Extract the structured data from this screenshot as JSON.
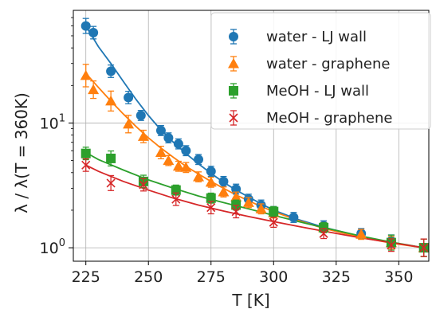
{
  "chart_data": {
    "type": "scatter",
    "title": "",
    "xlabel": "T [K]",
    "ylabel": "λ / λ(T = 360K)",
    "xlim": [
      220,
      362
    ],
    "ylim": [
      0.78,
      80
    ],
    "yscale": "log",
    "grid": true,
    "legend_position": "top-right",
    "x_ticks": [
      {
        "value": 225,
        "label": "225"
      },
      {
        "value": 250,
        "label": "250"
      },
      {
        "value": 275,
        "label": "275"
      },
      {
        "value": 300,
        "label": "300"
      },
      {
        "value": 325,
        "label": "325"
      },
      {
        "value": 350,
        "label": "350"
      }
    ],
    "y_ticks": [
      {
        "value": 1,
        "base": "10",
        "exp": "0"
      },
      {
        "value": 10,
        "base": "10",
        "exp": "1"
      }
    ],
    "series": [
      {
        "name": "water - LJ wall",
        "color": "#1f77b4",
        "marker": "circle",
        "x": [
          225,
          228,
          235,
          242,
          247,
          255,
          258,
          262,
          265,
          270,
          275,
          280,
          285,
          290,
          295,
          300,
          308,
          320,
          335,
          347,
          360
        ],
        "y": [
          60,
          53,
          26,
          16,
          11.5,
          8.7,
          7.6,
          6.8,
          6.0,
          5.1,
          4.1,
          3.4,
          2.95,
          2.45,
          2.2,
          1.95,
          1.75,
          1.5,
          1.3,
          1.13,
          1.0
        ],
        "err": [
          0.06,
          0.05,
          0.05,
          0.05,
          0.04,
          0.04,
          0.04,
          0.04,
          0.04,
          0.04,
          0.04,
          0.04,
          0.04,
          0.04,
          0.04,
          0.04,
          0.04,
          0.04,
          0.04,
          0.05,
          0.07
        ],
        "fit_x": [
          225,
          230,
          235,
          240,
          245,
          250,
          255,
          260,
          265,
          270,
          275,
          280,
          285,
          290,
          295,
          300,
          310,
          320,
          335,
          347,
          360
        ],
        "fit_y": [
          60,
          41,
          30,
          21.5,
          15.5,
          11.5,
          8.8,
          7.0,
          5.7,
          4.7,
          3.95,
          3.35,
          2.9,
          2.55,
          2.25,
          2.0,
          1.68,
          1.46,
          1.23,
          1.1,
          1.0
        ]
      },
      {
        "name": "water - graphene",
        "color": "#ff7f0e",
        "marker": "triangle",
        "x": [
          225,
          228,
          235,
          242,
          248,
          255,
          258,
          262,
          265,
          270,
          275,
          280,
          285,
          290,
          295,
          300,
          320,
          335,
          347,
          360
        ],
        "y": [
          24,
          18.5,
          15,
          9.8,
          7.8,
          5.8,
          5.0,
          4.5,
          4.4,
          3.7,
          3.35,
          2.8,
          2.55,
          2.3,
          2.05,
          1.9,
          1.45,
          1.28,
          1.1,
          1.0
        ],
        "err": [
          0.09,
          0.07,
          0.08,
          0.07,
          0.05,
          0.05,
          0.04,
          0.04,
          0.04,
          0.04,
          0.04,
          0.04,
          0.04,
          0.04,
          0.04,
          0.04,
          0.04,
          0.04,
          0.05,
          0.07
        ],
        "fit_x": [
          225,
          230,
          235,
          240,
          245,
          250,
          255,
          260,
          265,
          270,
          275,
          280,
          285,
          290,
          295,
          300,
          310,
          320,
          335,
          347,
          360
        ],
        "fit_y": [
          25,
          19.3,
          15,
          11.8,
          9.4,
          7.6,
          6.3,
          5.3,
          4.5,
          3.9,
          3.4,
          3.0,
          2.65,
          2.38,
          2.14,
          1.95,
          1.65,
          1.43,
          1.21,
          1.09,
          1.0
        ]
      },
      {
        "name": "MeOH - LJ wall",
        "color": "#2ca02c",
        "marker": "square",
        "x": [
          225,
          235,
          248,
          261,
          275,
          285,
          300,
          320,
          347,
          360
        ],
        "y": [
          5.7,
          5.2,
          3.4,
          2.9,
          2.5,
          2.2,
          1.95,
          1.45,
          1.1,
          1.0
        ],
        "err": [
          0.05,
          0.06,
          0.05,
          0.04,
          0.04,
          0.04,
          0.04,
          0.04,
          0.06,
          0.07
        ],
        "fit_x": [
          225,
          230,
          240,
          250,
          260,
          270,
          280,
          290,
          300,
          310,
          320,
          335,
          347,
          360
        ],
        "fit_y": [
          5.8,
          5.1,
          4.2,
          3.5,
          3.0,
          2.6,
          2.3,
          2.05,
          1.82,
          1.62,
          1.45,
          1.24,
          1.11,
          1.0
        ]
      },
      {
        "name": "MeOH - graphene",
        "color": "#d62728",
        "marker": "x",
        "x": [
          225,
          235,
          248,
          261,
          275,
          285,
          300,
          320,
          347,
          360
        ],
        "y": [
          4.6,
          3.3,
          3.2,
          2.45,
          2.1,
          1.95,
          1.6,
          1.3,
          1.05,
          1.0
        ],
        "err": [
          0.05,
          0.06,
          0.05,
          0.05,
          0.05,
          0.05,
          0.04,
          0.04,
          0.05,
          0.07
        ],
        "fit_x": [
          225,
          230,
          240,
          250,
          260,
          270,
          280,
          290,
          300,
          310,
          320,
          335,
          347,
          360
        ],
        "fit_y": [
          4.6,
          4.1,
          3.4,
          2.9,
          2.5,
          2.2,
          1.97,
          1.78,
          1.62,
          1.48,
          1.36,
          1.2,
          1.1,
          1.0
        ]
      }
    ]
  }
}
